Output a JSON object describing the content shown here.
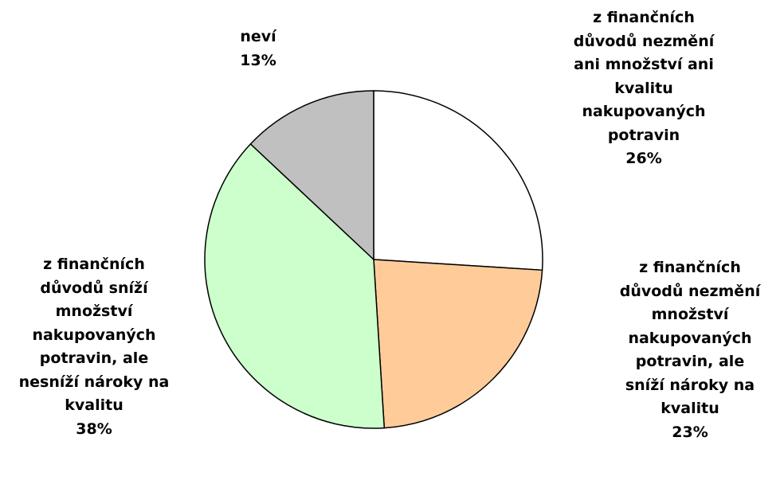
{
  "chart_data": {
    "type": "pie",
    "categories": [
      "z finančních důvodů nezmění ani množství ani kvalitu nakupovaných potravin",
      "z finančních důvodů nezmění množství nakupovaných potravin, ale sníží nároky na kvalitu",
      "z finančních důvodů sníží množství nakupovaných potravin, ale nesníží nároky na kvalitu",
      "neví"
    ],
    "values": [
      26,
      23,
      38,
      13
    ],
    "value_labels": [
      "26%",
      "23%",
      "38%",
      "13%"
    ],
    "colors": [
      "#ffffff",
      "#ffcc99",
      "#ccffcc",
      "#c0c0c0"
    ]
  }
}
